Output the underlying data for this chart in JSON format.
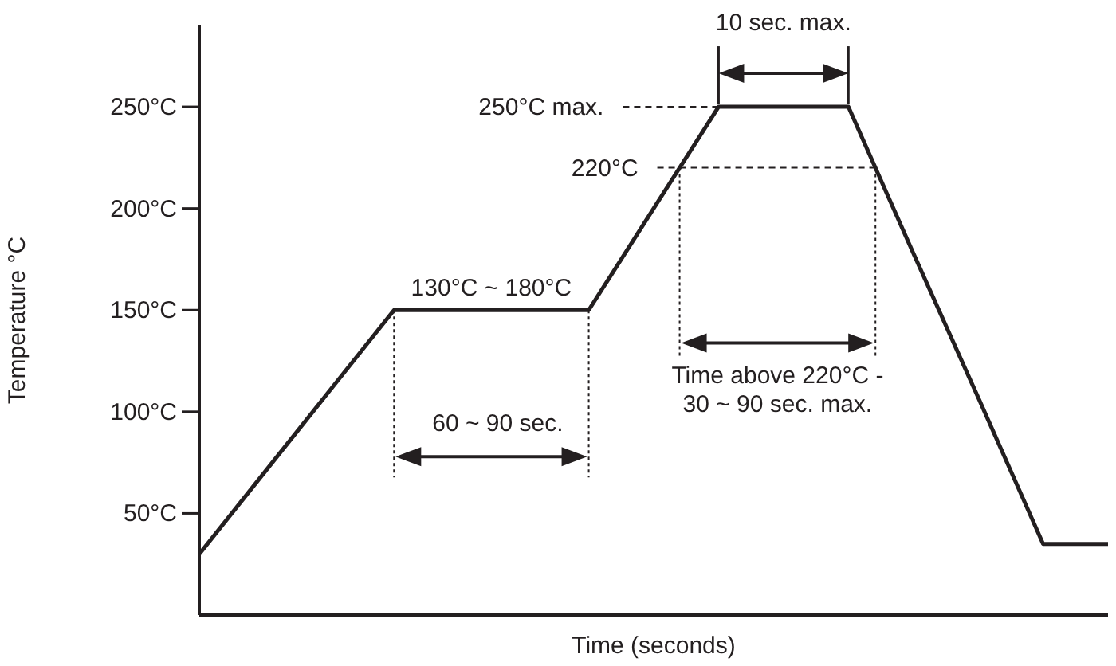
{
  "chart_data": {
    "type": "line",
    "xlabel": "Time (seconds)",
    "ylabel": "Temperature °C",
    "categories": [
      null,
      null,
      null,
      null,
      null,
      null,
      null,
      null,
      null,
      null,
      null,
      null,
      null,
      null,
      null
    ],
    "series": [
      {
        "color": "#231f20",
        "values": [
          30,
          70,
          110,
          150,
          150,
          150,
          150,
          200,
          250,
          250,
          250,
          178,
          107,
          35,
          35
        ]
      }
    ],
    "ylim": [
      0,
      290
    ],
    "yticks": [
      {
        "value": 50,
        "label": "50°C"
      },
      {
        "value": 100,
        "label": "100°C"
      },
      {
        "value": 150,
        "label": "150°C"
      },
      {
        "value": 200,
        "label": "200°C"
      },
      {
        "value": 250,
        "label": "250°C"
      }
    ],
    "tick_labels": "y",
    "grid": false,
    "legend": false,
    "marker": "none",
    "line_style": "solid",
    "annotations": [
      {
        "text": "10 sec. max.",
        "y": 250
      },
      {
        "text": "130°C ~ 180°C",
        "y": 150
      },
      "60 ~ 90 sec.",
      "Time above 220°C -\n30 ~ 90 sec. max."
    ],
    "ref_lines": [
      {
        "axis": "y",
        "value": 250,
        "label": "250°C max.",
        "line_style": "dashed",
        "color": "#231f20"
      },
      {
        "axis": "y",
        "value": 220,
        "label": "220°C",
        "line_style": "dashed",
        "color": "#231f20"
      }
    ]
  }
}
